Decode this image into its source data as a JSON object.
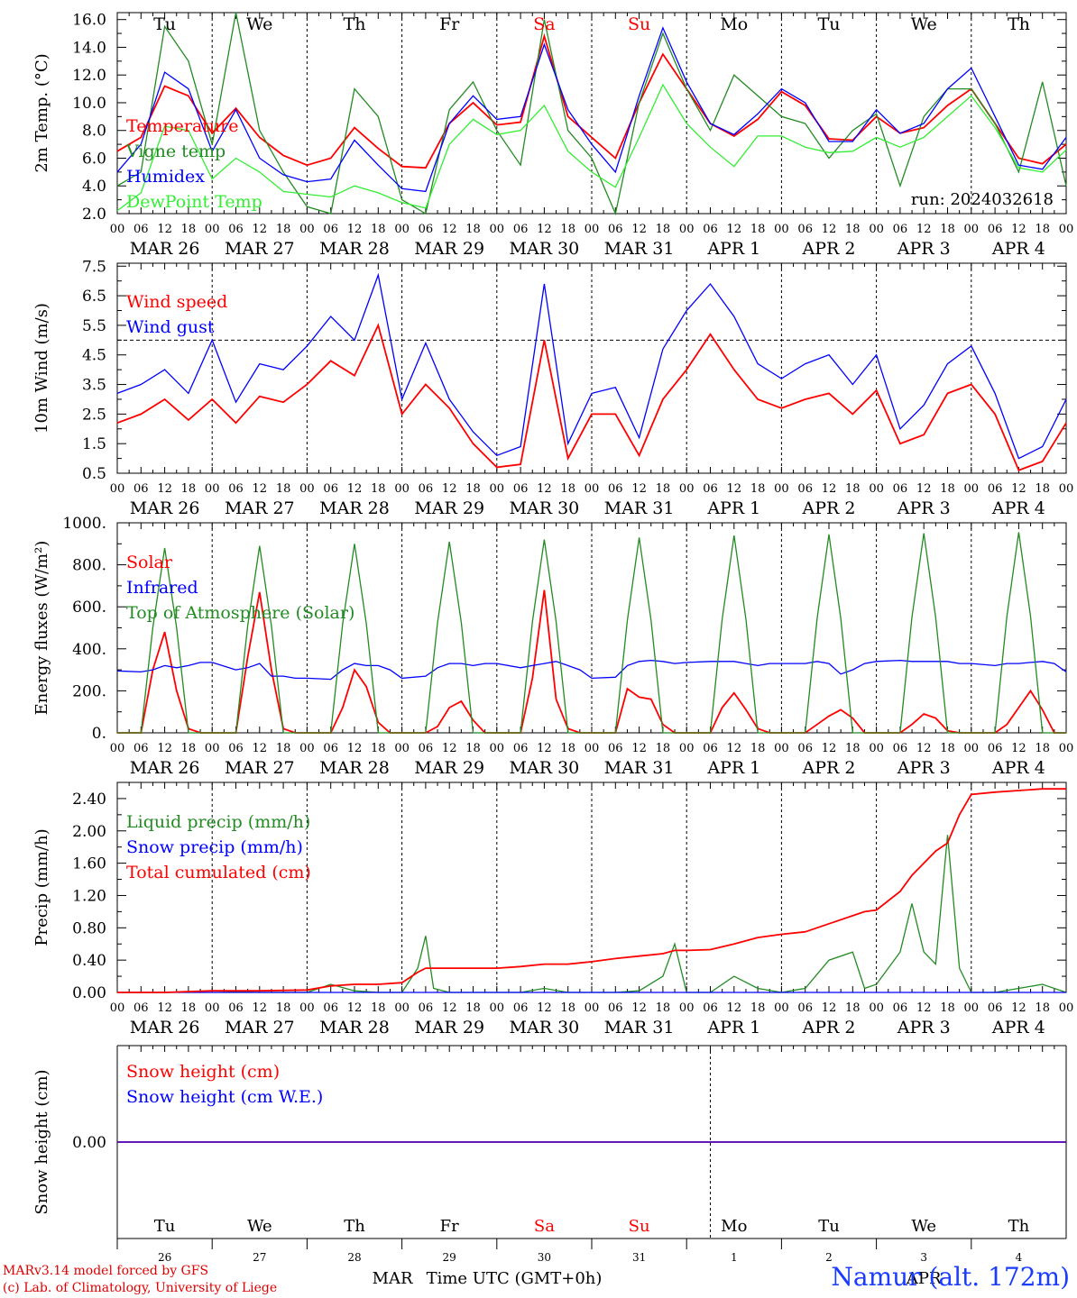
{
  "run_label": "run: 2024032618",
  "time_axis_label": "Time UTC (GMT+0h)",
  "station": "Namur (alt. 172m)",
  "credits": [
    "MARv3.14 model forced by GFS",
    "(c) Lab. of Climatology, University of Liege"
  ],
  "days": [
    {
      "wd": "Tu",
      "date": "MAR 26",
      "num": "26",
      "color": "#000000"
    },
    {
      "wd": "We",
      "date": "MAR 27",
      "num": "27",
      "color": "#000000"
    },
    {
      "wd": "Th",
      "date": "MAR 28",
      "num": "28",
      "color": "#000000"
    },
    {
      "wd": "Fr",
      "date": "MAR 29",
      "num": "29",
      "color": "#000000"
    },
    {
      "wd": "Sa",
      "date": "MAR 30",
      "num": "30",
      "color": "#ff0000"
    },
    {
      "wd": "Su",
      "date": "MAR 31",
      "num": "31",
      "color": "#ff0000"
    },
    {
      "wd": "Mo",
      "date": "APR  1",
      "num": "1",
      "color": "#000000"
    },
    {
      "wd": "Tu",
      "date": "APR  2",
      "num": "2",
      "color": "#000000"
    },
    {
      "wd": "We",
      "date": "APR  3",
      "num": "3",
      "color": "#000000"
    },
    {
      "wd": "Th",
      "date": "APR  4",
      "num": "4",
      "color": "#000000"
    }
  ],
  "hour_ticks": [
    "00",
    "06",
    "12",
    "18"
  ],
  "month_labels": [
    {
      "text": "MAR",
      "day": 2.9
    },
    {
      "text": "APR",
      "day": 8.5
    }
  ],
  "chart_data": [
    {
      "type": "line",
      "id": "temp",
      "ylabel": "2m Temp. (°C)",
      "ylim": [
        2,
        16.5
      ],
      "yticks": [
        2,
        4,
        6,
        8,
        10,
        12,
        14,
        16
      ],
      "tick_fmt": 1,
      "x_unit": "hours from 26 Mar 00 UTC",
      "x": [
        0,
        6,
        12,
        18,
        24,
        30,
        36,
        42,
        48,
        54,
        60,
        66,
        72,
        78,
        84,
        90,
        96,
        102,
        108,
        114,
        120,
        126,
        132,
        138,
        144,
        150,
        156,
        162,
        168,
        174,
        180,
        186,
        192,
        198,
        204,
        210,
        216,
        222,
        228,
        234,
        240
      ],
      "series": [
        {
          "name": "Temperature",
          "color": "#ff0000",
          "values": [
            6.5,
            7.5,
            11.2,
            10.5,
            7.8,
            9.6,
            7.5,
            6.2,
            5.5,
            6.0,
            8.2,
            6.7,
            5.4,
            5.3,
            8.5,
            10.0,
            8.4,
            8.6,
            14.8,
            9.0,
            7.5,
            6.0,
            10.0,
            13.5,
            11.0,
            8.5,
            7.6,
            8.8,
            10.8,
            9.8,
            7.4,
            7.3,
            9.0,
            7.8,
            8.2,
            9.8,
            11.0,
            8.5,
            6.0,
            5.6,
            7.0
          ]
        },
        {
          "name": "Vigne temp",
          "color": "#228b22",
          "values": [
            4.0,
            5.0,
            15.5,
            13.0,
            7.0,
            16.5,
            8.0,
            5.0,
            2.5,
            2.0,
            11.0,
            9.0,
            3.0,
            2.0,
            9.5,
            11.5,
            8.0,
            5.5,
            16.0,
            8.0,
            6.0,
            2.0,
            10.0,
            15.0,
            11.0,
            8.0,
            12.0,
            10.5,
            9.0,
            8.5,
            6.0,
            8.0,
            9.2,
            4.0,
            9.0,
            11.0,
            11.0,
            8.5,
            5.0,
            11.5,
            4.0
          ]
        },
        {
          "name": "Humidex",
          "color": "#0000ff",
          "values": [
            5.0,
            7.0,
            12.2,
            11.0,
            6.5,
            9.5,
            6.0,
            4.8,
            4.3,
            4.5,
            7.3,
            5.5,
            3.8,
            3.6,
            8.5,
            10.5,
            8.8,
            9.0,
            14.2,
            9.5,
            7.0,
            5.0,
            10.5,
            15.4,
            11.5,
            8.5,
            7.7,
            9.2,
            11.0,
            10.0,
            7.2,
            7.2,
            9.5,
            7.8,
            8.5,
            11.0,
            12.5,
            9.0,
            5.5,
            5.2,
            7.5
          ]
        },
        {
          "name": "DewPoint Temp",
          "color": "#33ee33",
          "values": [
            2.2,
            3.5,
            8.3,
            8.0,
            4.5,
            6.0,
            5.0,
            3.6,
            3.4,
            3.2,
            4.0,
            3.5,
            2.8,
            2.4,
            7.0,
            8.8,
            7.7,
            8.0,
            9.8,
            6.5,
            5.0,
            3.9,
            7.5,
            11.3,
            8.5,
            6.8,
            5.4,
            7.6,
            7.6,
            6.8,
            6.4,
            6.5,
            7.5,
            6.8,
            7.5,
            9.0,
            10.5,
            8.2,
            5.3,
            5.0,
            6.6
          ]
        }
      ],
      "legend_top": 146,
      "ref_line": null
    },
    {
      "type": "line",
      "id": "wind",
      "ylabel": "10m Wind (m/s)",
      "ylim": [
        0.5,
        7.6
      ],
      "yticks": [
        0.5,
        1.5,
        2.5,
        3.5,
        4.5,
        5.5,
        6.5,
        7.5
      ],
      "tick_fmt": 1,
      "ref_line": 5.0,
      "x": [
        0,
        6,
        12,
        18,
        24,
        30,
        36,
        42,
        48,
        54,
        60,
        66,
        72,
        78,
        84,
        90,
        96,
        102,
        108,
        114,
        120,
        126,
        132,
        138,
        144,
        150,
        156,
        162,
        168,
        174,
        180,
        186,
        192,
        198,
        204,
        210,
        216,
        222,
        228,
        234,
        240
      ],
      "series": [
        {
          "name": "Wind speed",
          "color": "#ff0000",
          "values": [
            2.2,
            2.5,
            3.0,
            2.3,
            3.0,
            2.2,
            3.1,
            2.9,
            3.5,
            4.3,
            3.8,
            5.5,
            2.5,
            3.5,
            2.7,
            1.5,
            0.7,
            0.8,
            5.0,
            1.0,
            2.5,
            2.5,
            1.1,
            3.0,
            4.0,
            5.2,
            4.0,
            3.0,
            2.7,
            3.0,
            3.2,
            2.5,
            3.3,
            1.5,
            1.8,
            3.2,
            3.5,
            2.5,
            0.6,
            0.9,
            2.2
          ]
        },
        {
          "name": "Wind gust",
          "color": "#0000ff",
          "values": [
            3.2,
            3.5,
            4.0,
            3.2,
            5.0,
            2.9,
            4.2,
            4.0,
            4.8,
            5.8,
            5.0,
            7.2,
            3.0,
            4.9,
            3.0,
            1.9,
            1.1,
            1.4,
            6.9,
            1.5,
            3.2,
            3.4,
            1.7,
            4.7,
            6.0,
            6.9,
            5.8,
            4.2,
            3.7,
            4.2,
            4.5,
            3.5,
            4.5,
            2.0,
            2.8,
            4.2,
            4.8,
            3.2,
            1.0,
            1.4,
            3.0
          ]
        }
      ],
      "legend_top": 341
    },
    {
      "type": "line",
      "id": "energy",
      "ylabel": "Energy fluxes (W/m²)",
      "ylim": [
        0,
        1000
      ],
      "yticks": [
        0,
        200,
        400,
        600,
        800,
        1000
      ],
      "tick_fmt": "dot",
      "ref_line": null,
      "x": [
        0,
        6,
        9,
        12,
        15,
        18,
        21,
        24,
        30,
        33,
        36,
        39,
        42,
        45,
        48,
        54,
        57,
        60,
        63,
        66,
        69,
        72,
        78,
        81,
        84,
        87,
        90,
        93,
        96,
        102,
        105,
        108,
        111,
        114,
        117,
        120,
        126,
        129,
        132,
        135,
        138,
        141,
        144,
        150,
        153,
        156,
        159,
        162,
        165,
        168,
        174,
        177,
        180,
        183,
        186,
        189,
        192,
        198,
        201,
        204,
        207,
        210,
        213,
        216,
        222,
        225,
        228,
        231,
        234,
        237,
        240
      ],
      "series": [
        {
          "name": "Solar",
          "color": "#ff0000",
          "values": [
            0,
            0,
            300,
            480,
            200,
            20,
            0,
            0,
            0,
            360,
            670,
            300,
            20,
            0,
            0,
            0,
            120,
            300,
            220,
            50,
            0,
            0,
            0,
            30,
            120,
            150,
            60,
            0,
            0,
            0,
            260,
            680,
            160,
            20,
            0,
            0,
            0,
            210,
            170,
            160,
            40,
            0,
            0,
            0,
            120,
            190,
            110,
            20,
            0,
            0,
            0,
            40,
            80,
            110,
            70,
            0,
            0,
            0,
            40,
            90,
            70,
            10,
            0,
            0,
            0,
            40,
            120,
            200,
            110,
            0,
            0
          ]
        },
        {
          "name": "Infrared",
          "color": "#0000ff",
          "values": [
            295,
            290,
            300,
            320,
            310,
            320,
            335,
            335,
            300,
            310,
            330,
            270,
            270,
            260,
            260,
            255,
            300,
            330,
            320,
            320,
            300,
            260,
            270,
            310,
            330,
            330,
            320,
            330,
            330,
            310,
            320,
            330,
            340,
            320,
            300,
            260,
            265,
            320,
            340,
            345,
            340,
            330,
            335,
            340,
            340,
            340,
            330,
            320,
            330,
            330,
            330,
            340,
            330,
            280,
            300,
            330,
            340,
            345,
            340,
            340,
            340,
            340,
            330,
            330,
            320,
            330,
            330,
            335,
            340,
            330,
            290
          ]
        },
        {
          "name": "Top of Atmosphere (Solar)",
          "color": "#228b22",
          "values": [
            0,
            0,
            500,
            880,
            500,
            0,
            0,
            0,
            0,
            510,
            890,
            510,
            0,
            0,
            0,
            0,
            520,
            900,
            520,
            0,
            0,
            0,
            0,
            525,
            910,
            525,
            0,
            0,
            0,
            0,
            530,
            920,
            530,
            0,
            0,
            0,
            0,
            535,
            930,
            535,
            0,
            0,
            0,
            0,
            540,
            940,
            540,
            0,
            0,
            0,
            0,
            545,
            945,
            545,
            0,
            0,
            0,
            0,
            550,
            950,
            550,
            0,
            0,
            0,
            0,
            555,
            955,
            555,
            0,
            0,
            0
          ]
        }
      ],
      "legend_top": 630
    },
    {
      "type": "line",
      "id": "precip",
      "ylabel": "Precip (mm/h)",
      "ylim": [
        0,
        2.6
      ],
      "yticks": [
        0,
        0.4,
        0.8,
        1.2,
        1.6,
        2.0,
        2.4
      ],
      "tick_fmt": 2,
      "ref_line": null,
      "x": [
        0,
        12,
        24,
        36,
        48,
        54,
        60,
        66,
        72,
        76,
        78,
        80,
        84,
        90,
        96,
        102,
        108,
        114,
        120,
        126,
        132,
        138,
        141,
        144,
        150,
        156,
        162,
        168,
        174,
        180,
        186,
        189,
        192,
        198,
        201,
        204,
        207,
        210,
        213,
        216,
        222,
        228,
        234,
        240
      ],
      "series": [
        {
          "name": "Liquid precip (mm/h)",
          "color": "#228b22",
          "values": [
            0,
            0,
            0.02,
            0,
            0,
            0.1,
            0.02,
            0,
            0,
            0.3,
            0.7,
            0.05,
            0,
            0,
            0,
            0,
            0.05,
            0,
            0,
            0,
            0.02,
            0.2,
            0.6,
            0,
            0,
            0.2,
            0.05,
            0,
            0.05,
            0.4,
            0.5,
            0.05,
            0.1,
            0.5,
            1.1,
            0.5,
            0.35,
            1.95,
            0.3,
            0,
            0,
            0.05,
            0.1,
            0
          ]
        },
        {
          "name": "Snow precip (mm/h)",
          "color": "#0000ff",
          "values": [
            0,
            0,
            0,
            0,
            0,
            0,
            0,
            0,
            0,
            0,
            0,
            0,
            0,
            0,
            0,
            0,
            0,
            0,
            0,
            0,
            0,
            0,
            0,
            0,
            0,
            0,
            0,
            0,
            0,
            0,
            0,
            0,
            0,
            0,
            0,
            0,
            0,
            0,
            0,
            0,
            0,
            0,
            0,
            0
          ]
        },
        {
          "name": "Total cumulated (cm)",
          "color": "#ff0000",
          "values": [
            0,
            0,
            0.02,
            0.02,
            0.03,
            0.08,
            0.1,
            0.1,
            0.12,
            0.25,
            0.3,
            0.3,
            0.3,
            0.3,
            0.3,
            0.32,
            0.35,
            0.35,
            0.38,
            0.42,
            0.45,
            0.48,
            0.52,
            0.52,
            0.53,
            0.6,
            0.68,
            0.72,
            0.75,
            0.85,
            0.95,
            1.0,
            1.02,
            1.25,
            1.45,
            1.6,
            1.75,
            1.85,
            2.2,
            2.45,
            2.48,
            2.5,
            2.52,
            2.52
          ]
        }
      ],
      "legend_top": 918
    },
    {
      "type": "line",
      "id": "snow",
      "ylabel": "Snow height (cm)",
      "ylim": [
        -1,
        1
      ],
      "yticks": [
        0
      ],
      "tick_fmt": 2,
      "ref_line": null,
      "x": [
        0,
        240
      ],
      "series": [
        {
          "name": "Snow height (cm)",
          "color": "#ff0000",
          "values": [
            0,
            0
          ]
        },
        {
          "name": "Snow height (cm W.E.)",
          "color": "#0000ff",
          "values": [
            0,
            0
          ]
        }
      ],
      "legend_top": 1195
    }
  ]
}
